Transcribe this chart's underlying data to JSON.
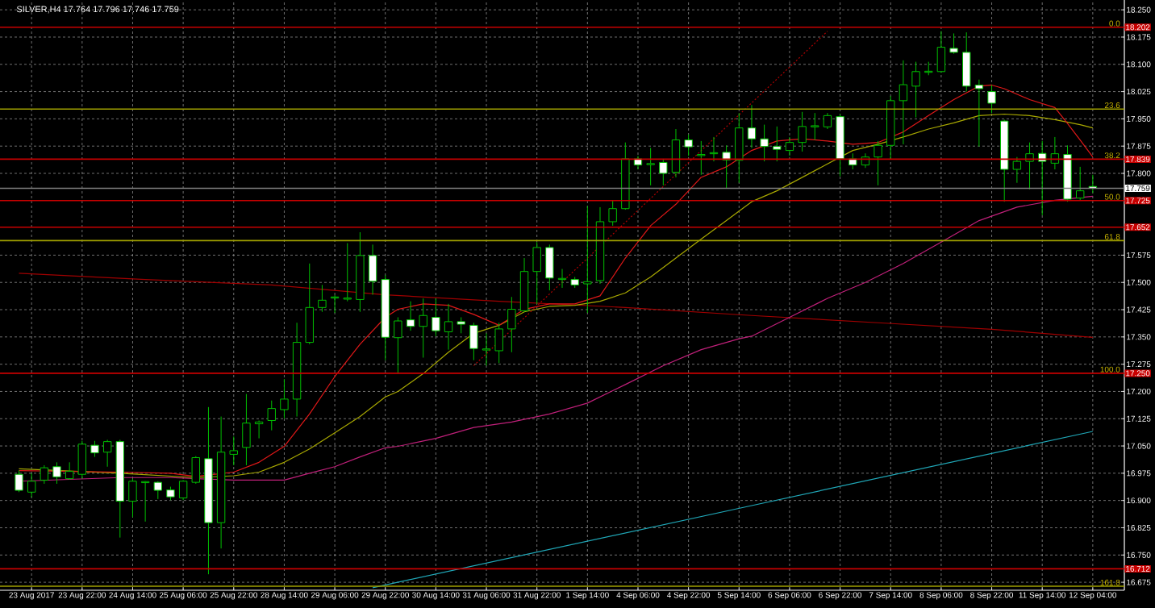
{
  "chart_data": {
    "type": "candlestick",
    "title": "SILVER,H4 17.764 17.796 17.746 17.759",
    "categories": [
      null,
      "23 Aug 2017",
      null,
      null,
      null,
      "23 Aug 22:00",
      null,
      null,
      null,
      "24 Aug 14:00",
      null,
      null,
      null,
      "25 Aug 06:00",
      null,
      null,
      null,
      "25 Aug 22:00",
      null,
      null,
      null,
      "28 Aug 14:00",
      null,
      null,
      null,
      "29 Aug 06:00",
      null,
      null,
      null,
      "29 Aug 22:00",
      null,
      null,
      null,
      "30 Aug 14:00",
      null,
      null,
      null,
      "31 Aug 06:00",
      null,
      null,
      null,
      "31 Aug 22:00",
      null,
      null,
      null,
      "1 Sep 14:00",
      null,
      null,
      null,
      "4 Sep 06:00",
      null,
      null,
      null,
      "4 Sep 22:00",
      null,
      null,
      null,
      "5 Sep 14:00",
      null,
      null,
      null,
      "6 Sep 06:00",
      null,
      null,
      null,
      "6 Sep 22:00",
      null,
      null,
      null,
      "7 Sep 14:00",
      null,
      null,
      null,
      "8 Sep 06:00",
      null,
      null,
      null,
      "8 Sep 22:00",
      null,
      null,
      null,
      "11 Sep 14:00",
      null,
      null,
      null,
      "12 Sep 04:00"
    ],
    "ylim": [
      16.653,
      18.277
    ],
    "yticks": [
      16.675,
      {
        "value": 16.75,
        "label": "16.750"
      },
      16.825,
      {
        "value": 16.9,
        "label": "16.900"
      },
      16.975,
      {
        "value": 17.05,
        "label": "17.050"
      },
      17.125,
      {
        "value": 17.2,
        "label": "17.200"
      },
      17.275,
      {
        "value": 17.35,
        "label": "17.350"
      },
      17.425,
      {
        "value": 17.5,
        "label": "17.500"
      },
      17.575,
      {
        "value": 17.8,
        "label": "17.800"
      },
      17.875,
      {
        "value": 17.95,
        "label": "17.950"
      },
      18.025,
      {
        "value": 18.1,
        "label": "18.100"
      },
      18.175,
      {
        "value": 18.25,
        "label": "18.250"
      }
    ],
    "grid": true,
    "ref_lines": [
      {
        "axis": "y",
        "value": 18.202,
        "label": "18.202",
        "color": "#c80000"
      },
      {
        "axis": "y",
        "value": 17.839,
        "label": "17.839",
        "color": "#c80000"
      },
      {
        "axis": "y",
        "value": 17.725,
        "label": "17.725",
        "color": "#c80000"
      },
      {
        "axis": "y",
        "value": 17.652,
        "label": "17.652",
        "color": "#c80000"
      },
      {
        "axis": "y",
        "value": 17.25,
        "label": "17.250",
        "color": "#c80000"
      },
      {
        "axis": "y",
        "value": 16.712,
        "label": "16.712",
        "color": "#c80000"
      },
      {
        "axis": "y",
        "value": 17.759,
        "label": "17.759",
        "color": "#808080"
      },
      {
        "axis": "y",
        "value": 17.977,
        "color": "#a0a000"
      },
      {
        "axis": "y",
        "value": 17.615,
        "color": "#a0a000"
      },
      {
        "axis": "y",
        "value": 16.664,
        "color": "#a0a000"
      }
    ],
    "annotations": [
      {
        "text": "0.0",
        "y": 18.202
      },
      {
        "text": "23.6",
        "y": 17.977
      },
      {
        "text": "38.2",
        "y": 17.839
      },
      {
        "text": "50.0",
        "y": 17.725
      },
      {
        "text": "61.8",
        "y": 17.615
      },
      {
        "text": "100.0",
        "y": 17.25
      },
      {
        "text": "161.8",
        "y": 16.664
      }
    ],
    "series": [
      {
        "type": "line",
        "color": "#a00000",
        "values": [
          17.525,
          null,
          null,
          null,
          null,
          null,
          null,
          null,
          null,
          null,
          17.508,
          null,
          null,
          null,
          null,
          null,
          null,
          null,
          null,
          null,
          17.493,
          null,
          null,
          null,
          null,
          null,
          null,
          null,
          null,
          17.466,
          null,
          null,
          null,
          null,
          null,
          null,
          null,
          null,
          17.448,
          null,
          null,
          null,
          null,
          null,
          null,
          null,
          null,
          null,
          17.431,
          null,
          null,
          null,
          null,
          null,
          null,
          null,
          null,
          null,
          17.409,
          null,
          null,
          null,
          null,
          null,
          null,
          null,
          null,
          null,
          17.389,
          null,
          null,
          null,
          null,
          null,
          null,
          null,
          null,
          17.371,
          null,
          null,
          null,
          null,
          null,
          null,
          null,
          17.349
        ]
      },
      {
        "type": "line",
        "color": "#20a8b8",
        "values": [
          null,
          null,
          null,
          null,
          null,
          null,
          null,
          null,
          null,
          null,
          null,
          null,
          null,
          null,
          null,
          null,
          null,
          null,
          null,
          null,
          null,
          null,
          null,
          null,
          null,
          null,
          null,
          null,
          16.66,
          null,
          null,
          null,
          null,
          null,
          null,
          null,
          null,
          null,
          null,
          null,
          null,
          null,
          null,
          null,
          null,
          null,
          null,
          null,
          null,
          null,
          null,
          null,
          null,
          null,
          null,
          null,
          null,
          null,
          16.886,
          null,
          null,
          null,
          null,
          null,
          null,
          null,
          null,
          null,
          null,
          null,
          null,
          null,
          null,
          null,
          null,
          null,
          null,
          null,
          null,
          null,
          null,
          null,
          null,
          null,
          null,
          17.09
        ]
      },
      {
        "type": "line",
        "color": "#c0207a",
        "values": [
          16.953,
          null,
          null,
          null,
          null,
          null,
          null,
          null,
          16.963,
          null,
          null,
          null,
          16.963,
          null,
          null,
          null,
          null,
          16.956,
          null,
          null,
          null,
          16.956,
          null,
          16.975,
          null,
          16.993,
          null,
          17.02,
          null,
          17.045,
          17.049,
          null,
          null,
          17.071,
          null,
          null,
          17.101,
          null,
          null,
          17.116,
          null,
          null,
          17.138,
          null,
          null,
          17.168,
          null,
          null,
          17.219,
          null,
          null,
          17.271,
          null,
          null,
          17.315,
          null,
          null,
          17.345,
          17.352,
          null,
          null,
          17.404,
          null,
          null,
          17.456,
          null,
          null,
          17.5,
          null,
          null,
          17.552,
          null,
          null,
          17.611,
          null,
          null,
          17.67,
          null,
          null,
          17.707,
          null,
          null,
          17.726,
          null,
          null,
          17.737
        ]
      },
      {
        "type": "line",
        "color": "#a8a800",
        "values": [
          16.987,
          null,
          null,
          null,
          null,
          null,
          null,
          null,
          16.975,
          null,
          null,
          null,
          null,
          null,
          16.963,
          null,
          null,
          16.968,
          null,
          16.978,
          null,
          17.005,
          null,
          17.042,
          null,
          17.086,
          null,
          17.131,
          null,
          17.185,
          17.2,
          null,
          17.249,
          null,
          17.308,
          null,
          17.36,
          null,
          17.382,
          null,
          17.419,
          null,
          17.434,
          null,
          17.437,
          null,
          17.448,
          null,
          17.471,
          null,
          17.515,
          null,
          17.567,
          null,
          17.619,
          null,
          17.67,
          null,
          17.722,
          null,
          17.752,
          null,
          17.789,
          null,
          17.826,
          null,
          17.863,
          null,
          17.88,
          null,
          17.9,
          null,
          17.922,
          null,
          17.939,
          null,
          17.959,
          null,
          17.963,
          null,
          17.959,
          null,
          17.948,
          null,
          17.934,
          17.925
        ]
      },
      {
        "type": "line",
        "color": "#e01818",
        "values": [
          16.982,
          null,
          null,
          null,
          null,
          null,
          null,
          null,
          16.978,
          null,
          null,
          null,
          16.975,
          null,
          16.966,
          null,
          null,
          16.978,
          null,
          17.005,
          null,
          17.049,
          null,
          17.138,
          null,
          17.241,
          null,
          17.33,
          null,
          17.404,
          17.426,
          null,
          17.441,
          null,
          17.437,
          null,
          17.412,
          null,
          17.382,
          null,
          17.426,
          null,
          17.441,
          null,
          17.441,
          null,
          17.463,
          null,
          17.567,
          null,
          17.656,
          null,
          17.715,
          null,
          17.789,
          null,
          17.818,
          null,
          17.863,
          null,
          17.889,
          null,
          17.895,
          null,
          17.889,
          null,
          17.88,
          null,
          17.885,
          null,
          17.914,
          null,
          17.959,
          null,
          18.003,
          null,
          18.04,
          18.043,
          18.033,
          null,
          18.003,
          null,
          17.981,
          17.937,
          17.892,
          17.845
        ]
      },
      {
        "type": "line",
        "color": "#b00000",
        "line_style": "dotted",
        "values": [
          null,
          null,
          null,
          null,
          null,
          null,
          null,
          null,
          null,
          null,
          null,
          null,
          null,
          null,
          null,
          null,
          null,
          null,
          null,
          null,
          null,
          null,
          null,
          null,
          null,
          null,
          null,
          null,
          null,
          null,
          null,
          null,
          null,
          null,
          null,
          null,
          17.271,
          null,
          null,
          null,
          null,
          null,
          null,
          null,
          null,
          null,
          null,
          null,
          null,
          null,
          null,
          null,
          null,
          null,
          null,
          null,
          null,
          null,
          null,
          null,
          null,
          null,
          null,
          null,
          18.191,
          null,
          null,
          null,
          null,
          null,
          null,
          null,
          null,
          null,
          null,
          null,
          null,
          null,
          null,
          null,
          null,
          null,
          null,
          null,
          null,
          null
        ]
      },
      {
        "color": "#00c000",
        "colors": [
          "#ffffff",
          "#000000",
          "#000000",
          "#ffffff",
          "#000000",
          "#000000",
          "#ffffff",
          "#000000",
          "#ffffff",
          "#000000",
          "#000000",
          "#ffffff",
          "#ffffff",
          "#000000",
          "#000000",
          "#ffffff",
          "#000000",
          "#000000",
          "#000000",
          "#000000",
          "#000000",
          "#000000",
          "#000000",
          "#000000",
          "#000000",
          "#000000",
          "#000000",
          "#000000",
          "#ffffff",
          "#ffffff",
          "#000000",
          "#ffffff",
          "#000000",
          "#ffffff",
          "#000000",
          "#ffffff",
          "#ffffff",
          "#000000",
          "#000000",
          "#000000",
          "#000000",
          "#000000",
          "#ffffff",
          "#000000",
          "#ffffff",
          "#000000",
          "#000000",
          "#000000",
          "#000000",
          "#ffffff",
          "#000000",
          "#ffffff",
          "#000000",
          "#ffffff",
          "#000000",
          "#000000",
          "#ffffff",
          "#000000",
          "#ffffff",
          "#ffffff",
          "#ffffff",
          "#000000",
          "#000000",
          "#000000",
          "#000000",
          "#ffffff",
          "#ffffff",
          "#000000",
          "#000000",
          "#000000",
          "#000000",
          "#000000",
          "#000000",
          "#000000",
          "#ffffff",
          "#ffffff",
          "#ffffff",
          "#ffffff",
          "#ffffff",
          "#000000",
          "#000000",
          "#ffffff",
          "#000000",
          "#ffffff",
          "#000000",
          "#ffffff"
        ],
        "ohlc": [
          [
            16.972,
            16.983,
            16.923,
            16.928
          ],
          [
            16.923,
            16.975,
            16.909,
            16.953
          ],
          [
            16.956,
            16.997,
            16.946,
            16.99
          ],
          [
            16.993,
            17.005,
            16.946,
            16.965
          ],
          [
            16.96,
            17.005,
            16.957,
            16.98
          ],
          [
            16.972,
            17.064,
            16.96,
            17.055
          ],
          [
            17.052,
            17.064,
            17.02,
            17.031
          ],
          [
            17.033,
            17.067,
            16.993,
            17.062
          ],
          [
            17.062,
            17.067,
            16.798,
            16.898
          ],
          [
            16.898,
            16.96,
            16.854,
            16.953
          ],
          [
            16.949,
            16.953,
            16.842,
            16.952
          ],
          [
            16.95,
            16.953,
            16.904,
            16.928
          ],
          [
            16.929,
            16.938,
            16.901,
            16.91
          ],
          [
            16.907,
            16.956,
            16.901,
            16.953
          ],
          [
            16.95,
            17.022,
            16.946,
            17.018
          ],
          [
            17.015,
            17.157,
            16.697,
            16.839
          ],
          [
            16.839,
            17.131,
            16.768,
            17.033
          ],
          [
            17.027,
            17.076,
            16.997,
            17.037
          ],
          [
            17.046,
            17.193,
            16.997,
            17.113
          ],
          [
            17.111,
            17.12,
            17.071,
            17.116
          ],
          [
            17.12,
            17.175,
            17.093,
            17.153
          ],
          [
            17.15,
            17.234,
            17.126,
            17.179
          ],
          [
            17.179,
            17.389,
            17.131,
            17.335
          ],
          [
            17.335,
            17.552,
            17.33,
            17.431
          ],
          [
            17.431,
            17.493,
            17.419,
            17.451
          ],
          [
            17.457,
            17.465,
            17.416,
            17.46
          ],
          [
            17.454,
            17.608,
            17.448,
            17.457
          ],
          [
            17.453,
            17.638,
            17.419,
            17.574
          ],
          [
            17.574,
            17.604,
            17.466,
            17.503
          ],
          [
            17.508,
            17.52,
            17.286,
            17.349
          ],
          [
            17.348,
            17.404,
            17.249,
            17.394
          ],
          [
            17.397,
            17.448,
            17.367,
            17.379
          ],
          [
            17.379,
            17.456,
            17.293,
            17.409
          ],
          [
            17.404,
            17.456,
            17.352,
            17.367
          ],
          [
            17.364,
            17.441,
            17.315,
            17.392
          ],
          [
            17.392,
            17.404,
            17.36,
            17.385
          ],
          [
            17.382,
            17.389,
            17.286,
            17.318
          ],
          [
            17.314,
            17.36,
            17.271,
            17.317
          ],
          [
            17.312,
            17.389,
            17.278,
            17.372
          ],
          [
            17.372,
            17.46,
            17.308,
            17.426
          ],
          [
            17.422,
            17.567,
            17.419,
            17.53
          ],
          [
            17.53,
            17.611,
            17.441,
            17.596
          ],
          [
            17.596,
            17.604,
            17.478,
            17.512
          ],
          [
            17.508,
            17.537,
            17.485,
            17.511
          ],
          [
            17.508,
            17.515,
            17.485,
            17.493
          ],
          [
            17.496,
            17.71,
            17.416,
            17.502
          ],
          [
            17.505,
            17.707,
            17.496,
            17.667
          ],
          [
            17.667,
            17.726,
            17.656,
            17.703
          ],
          [
            17.703,
            17.885,
            17.7,
            17.84
          ],
          [
            17.84,
            17.848,
            17.811,
            17.823
          ],
          [
            17.824,
            17.87,
            17.767,
            17.827
          ],
          [
            17.83,
            17.84,
            17.767,
            17.8
          ],
          [
            17.803,
            17.922,
            17.789,
            17.892
          ],
          [
            17.892,
            17.907,
            17.848,
            17.873
          ],
          [
            17.849,
            17.889,
            17.796,
            17.852
          ],
          [
            17.854,
            17.9,
            17.833,
            17.857
          ],
          [
            17.858,
            17.877,
            17.759,
            17.837
          ],
          [
            17.836,
            17.966,
            17.774,
            17.925
          ],
          [
            17.925,
            17.988,
            17.87,
            17.895
          ],
          [
            17.895,
            17.934,
            17.833,
            17.874
          ],
          [
            17.874,
            17.929,
            17.833,
            17.866
          ],
          [
            17.863,
            17.9,
            17.848,
            17.885
          ],
          [
            17.885,
            17.969,
            17.86,
            17.929
          ],
          [
            17.928,
            17.966,
            17.892,
            17.931
          ],
          [
            17.928,
            17.966,
            17.922,
            17.959
          ],
          [
            17.956,
            17.963,
            17.792,
            17.84
          ],
          [
            17.84,
            17.855,
            17.811,
            17.823
          ],
          [
            17.823,
            17.855,
            17.815,
            17.845
          ],
          [
            17.845,
            17.889,
            17.767,
            17.877
          ],
          [
            17.877,
            18.013,
            17.84,
            18.0
          ],
          [
            18.0,
            18.111,
            17.88,
            18.044
          ],
          [
            18.04,
            18.107,
            17.954,
            18.08
          ],
          [
            18.078,
            18.107,
            18.07,
            18.081
          ],
          [
            18.08,
            18.191,
            18.077,
            18.147
          ],
          [
            18.144,
            18.185,
            18.129,
            18.133
          ],
          [
            18.133,
            18.188,
            18.025,
            18.04
          ],
          [
            18.043,
            18.058,
            17.874,
            18.033
          ],
          [
            18.025,
            18.043,
            17.966,
            17.993
          ],
          [
            17.944,
            17.948,
            17.722,
            17.811
          ],
          [
            17.811,
            17.845,
            17.774,
            17.833
          ],
          [
            17.833,
            17.885,
            17.756,
            17.854
          ],
          [
            17.855,
            17.889,
            17.685,
            17.833
          ],
          [
            17.828,
            17.9,
            17.811,
            17.854
          ],
          [
            17.852,
            17.877,
            17.722,
            17.729
          ],
          [
            17.732,
            17.818,
            17.726,
            17.752
          ],
          [
            17.764,
            17.796,
            17.746,
            17.759
          ]
        ]
      }
    ]
  }
}
